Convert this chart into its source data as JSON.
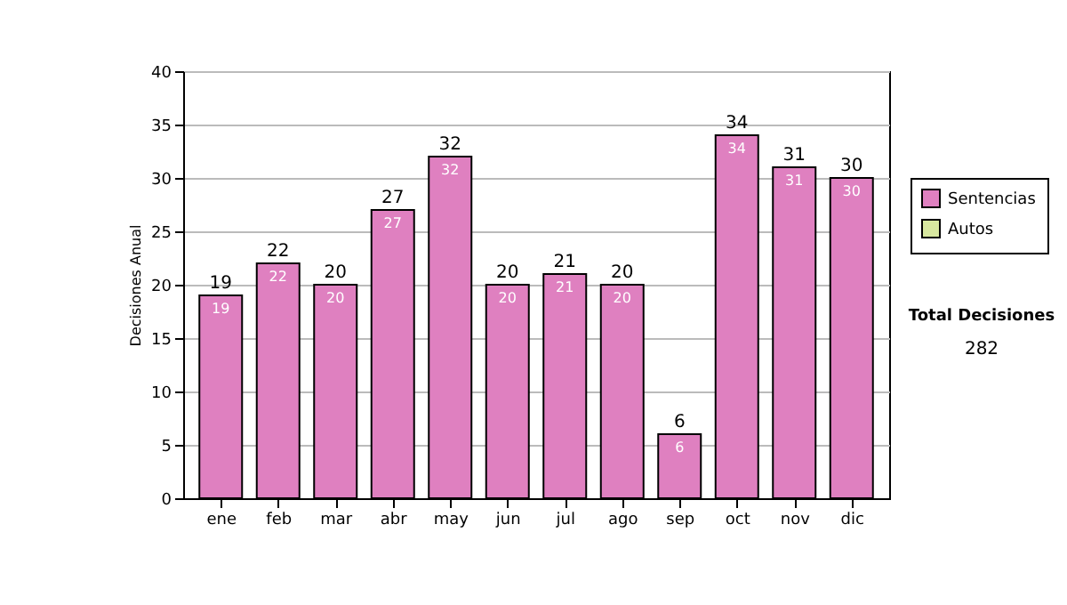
{
  "chart_data": {
    "type": "bar",
    "stacked": true,
    "ylabel": "Decisiones Anual",
    "categories": [
      "ene",
      "feb",
      "mar",
      "abr",
      "may",
      "jun",
      "jul",
      "ago",
      "sep",
      "oct",
      "nov",
      "dic"
    ],
    "series": [
      {
        "name": "Sentencias",
        "color": "#df80c0",
        "values": [
          19,
          22,
          20,
          27,
          32,
          20,
          21,
          20,
          6,
          34,
          31,
          30
        ]
      },
      {
        "name": "Autos",
        "color": "#d8e8a0",
        "values": [
          null,
          null,
          null,
          null,
          null,
          null,
          null,
          null,
          null,
          null,
          null,
          null
        ]
      }
    ],
    "totals": [
      "19",
      "22",
      "20",
      "27",
      "32",
      "20",
      "21",
      "20",
      "6",
      "34",
      "31",
      "30"
    ],
    "data_labels": true,
    "ylim": [
      0,
      40
    ],
    "yticks": [
      0,
      5,
      10,
      15,
      20,
      25,
      30,
      35,
      40
    ],
    "grid": "y",
    "legend": "right",
    "annotations": [
      "Total Decisiones",
      "282"
    ]
  }
}
